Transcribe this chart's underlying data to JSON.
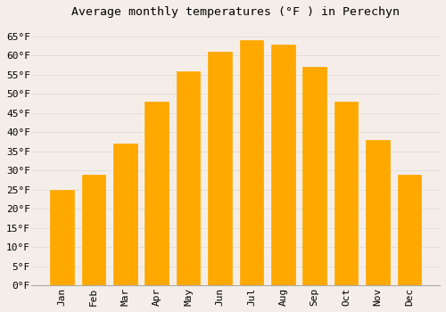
{
  "title": "Average monthly temperatures (°F ) in Perechyn",
  "months": [
    "Jan",
    "Feb",
    "Mar",
    "Apr",
    "May",
    "Jun",
    "Jul",
    "Aug",
    "Sep",
    "Oct",
    "Nov",
    "Dec"
  ],
  "values": [
    25,
    29,
    37,
    48,
    56,
    61,
    64,
    63,
    57,
    48,
    38,
    29
  ],
  "bar_color": "#FFA800",
  "bar_color_light": "#FFD060",
  "bar_edge_color": "#F09000",
  "background_color": "#F5EEE8",
  "plot_bg_color": "#F5EEE8",
  "grid_color": "#DDDDDD",
  "yticks": [
    0,
    5,
    10,
    15,
    20,
    25,
    30,
    35,
    40,
    45,
    50,
    55,
    60,
    65
  ],
  "ylim": [
    0,
    68
  ],
  "title_fontsize": 9.5,
  "tick_fontsize": 8,
  "font_family": "monospace"
}
